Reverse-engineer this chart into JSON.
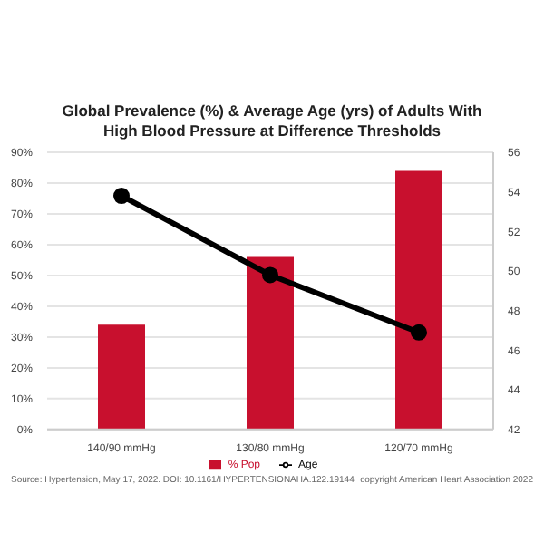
{
  "chart_data": {
    "type": "bar",
    "title": "Global Prevalence (%) & Average Age (yrs) of Adults With High Blood Pressure at Difference Thresholds",
    "categories": [
      "140/90 mmHg",
      "130/80 mmHg",
      "120/70 mmHg"
    ],
    "series": [
      {
        "name": "% Pop",
        "color": "#c8102e",
        "values": [
          34,
          56,
          84
        ]
      },
      {
        "name": "Age",
        "type": "line",
        "axis": "y2",
        "color": "#000000",
        "marker": "circle",
        "values": [
          53.8,
          49.8,
          46.9
        ]
      }
    ],
    "ylim": [
      0,
      90
    ],
    "yticks": [
      {
        "value": 0,
        "label": "0%"
      },
      {
        "value": 10,
        "label": "10%"
      },
      {
        "value": 20,
        "label": "20%"
      },
      {
        "value": 30,
        "label": "30%"
      },
      {
        "value": 40,
        "label": "40%"
      },
      {
        "value": 50,
        "label": "50%"
      },
      {
        "value": 60,
        "label": "60%"
      },
      {
        "value": 70,
        "label": "70%"
      },
      {
        "value": 80,
        "label": "80%"
      },
      {
        "value": 90,
        "label": "90%"
      }
    ],
    "y2lim": [
      42,
      56
    ],
    "y2ticks": [
      42,
      44,
      46,
      48,
      50,
      52,
      54,
      56
    ],
    "grid": "y",
    "legend": "bottom",
    "annotations": [
      "Source: Hypertension, May 17, 2022. DOI: 10.1161/HYPERTENSIONAHA.122.19144",
      "copyright American Heart Association 2022"
    ]
  }
}
